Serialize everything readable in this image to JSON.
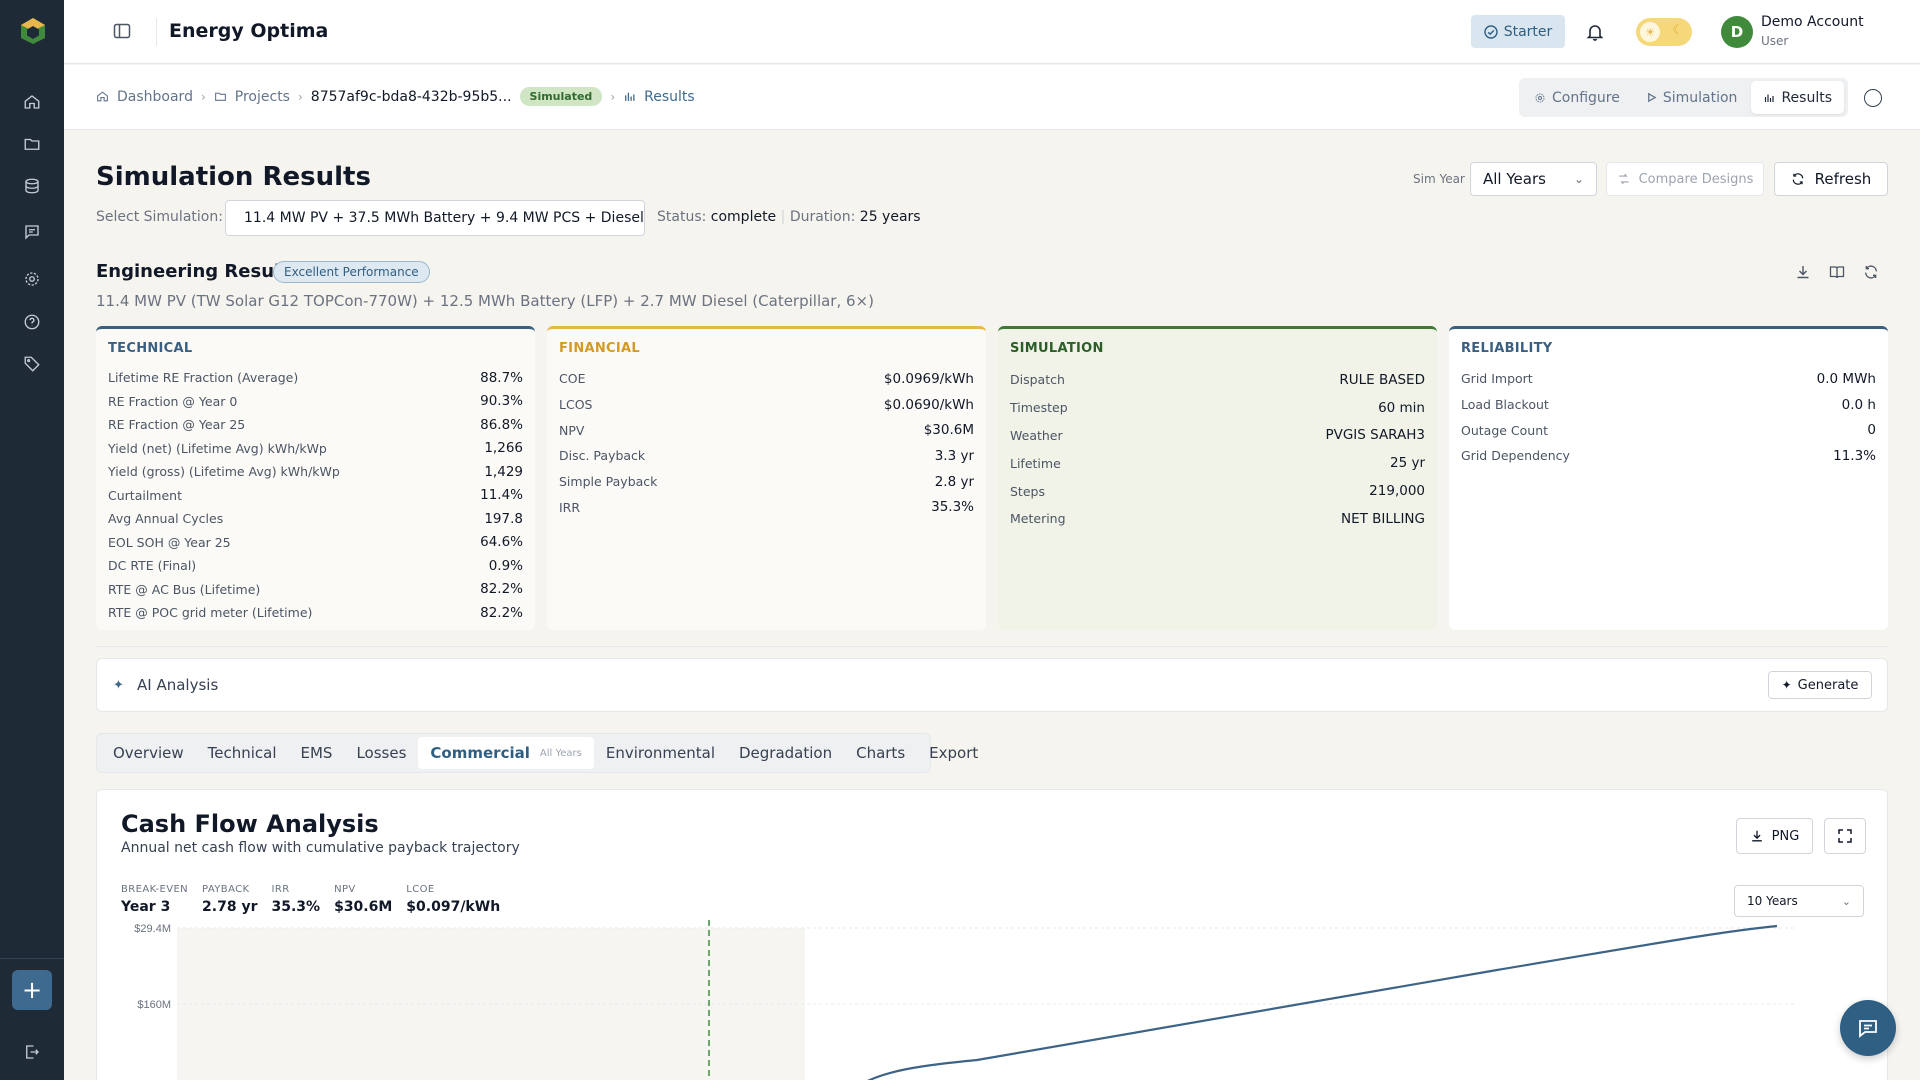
{
  "app": {
    "title": "Energy Optima"
  },
  "topbar": {
    "plan": "Starter",
    "account_name": "Demo Account",
    "account_role": "User",
    "avatar_letter": "D"
  },
  "sidebar": {
    "items": [
      "home-icon",
      "folder-icon",
      "database-icon",
      "message-icon",
      "settings-icon",
      "help-icon",
      "tag-icon"
    ],
    "add_label": "+"
  },
  "breadcrumb": {
    "dashboard": "Dashboard",
    "projects": "Projects",
    "project_id": "8757af9c-bda8-432b-95b5...",
    "status_badge": "Simulated",
    "results": "Results"
  },
  "view_tabs": {
    "configure": "Configure",
    "simulation": "Simulation",
    "results": "Results"
  },
  "header": {
    "title": "Simulation Results",
    "select_label": "Select Simulation:",
    "simulation": "11.4 MW PV + 37.5 MWh Battery + 9.4 MW PCS + Diesel...",
    "status_label": "Status:",
    "status_value": "complete",
    "duration_label": "Duration:",
    "duration_value": "25 years",
    "sim_year_label": "Sim Year",
    "sim_year_value": "All Years",
    "compare_label": "Compare Designs",
    "refresh_label": "Refresh"
  },
  "engineering": {
    "title": "Engineering Results",
    "badge": "Excellent Performance",
    "subtitle": "11.4 MW PV (TW Solar G12 TOPCon-770W) + 12.5 MWh Battery (LFP) + 2.7 MW Diesel (Caterpillar, 6×)"
  },
  "cards": {
    "technical": {
      "title": "TECHNICAL",
      "rows": [
        {
          "label": "Lifetime RE Fraction (Average)",
          "value": "88.7%"
        },
        {
          "label": "RE Fraction @ Year 0",
          "value": "90.3%"
        },
        {
          "label": "RE Fraction @ Year 25",
          "value": "86.8%"
        },
        {
          "label": "Yield (net) (Lifetime Avg) kWh/kWp",
          "value": "1,266"
        },
        {
          "label": "Yield (gross) (Lifetime Avg) kWh/kWp",
          "value": "1,429"
        },
        {
          "label": "Curtailment",
          "value": "11.4%"
        },
        {
          "label": "Avg Annual Cycles",
          "value": "197.8"
        },
        {
          "label": "EOL SOH @ Year 25",
          "value": "64.6%"
        },
        {
          "label": "DC RTE (Final)",
          "value": "0.9%"
        },
        {
          "label": "RTE @ AC Bus (Lifetime)",
          "value": "82.2%"
        },
        {
          "label": "RTE @ POC grid meter (Lifetime)",
          "value": "82.2%"
        }
      ]
    },
    "financial": {
      "title": "FINANCIAL",
      "rows": [
        {
          "label": "COE",
          "value": "$0.0969/kWh"
        },
        {
          "label": "LCOS",
          "value": "$0.0690/kWh"
        },
        {
          "label": "NPV",
          "value": "$30.6M"
        },
        {
          "label": "Disc. Payback",
          "value": "3.3 yr"
        },
        {
          "label": "Simple Payback",
          "value": "2.8 yr"
        },
        {
          "label": "IRR",
          "value": "35.3%"
        }
      ]
    },
    "simulation": {
      "title": "SIMULATION",
      "rows": [
        {
          "label": "Dispatch",
          "value": "RULE BASED"
        },
        {
          "label": "Timestep",
          "value": "60 min"
        },
        {
          "label": "Weather",
          "value": "PVGIS SARAH3"
        },
        {
          "label": "Lifetime",
          "value": "25 yr"
        },
        {
          "label": "Steps",
          "value": "219,000"
        },
        {
          "label": "Metering",
          "value": "NET BILLING"
        }
      ]
    },
    "reliability": {
      "title": "RELIABILITY",
      "rows": [
        {
          "label": "Grid Import",
          "value": "0.0 MWh"
        },
        {
          "label": "Load Blackout",
          "value": "0.0 h"
        },
        {
          "label": "Outage Count",
          "value": "0"
        },
        {
          "label": "Grid Dependency",
          "value": "11.3%"
        }
      ]
    }
  },
  "ai": {
    "label": "AI Analysis",
    "generate": "Generate"
  },
  "tabs": [
    {
      "label": "Overview"
    },
    {
      "label": "Technical"
    },
    {
      "label": "EMS"
    },
    {
      "label": "Losses"
    },
    {
      "label": "Commercial",
      "note": "All Years",
      "active": true
    },
    {
      "label": "Environmental"
    },
    {
      "label": "Degradation"
    },
    {
      "label": "Charts"
    },
    {
      "label": "Export"
    }
  ],
  "chart_panel": {
    "title": "Cash Flow Analysis",
    "subtitle": "Annual net cash flow with cumulative payback trajectory",
    "png_label": "PNG",
    "range": "10 Years",
    "kpis": [
      {
        "label": "BREAK-EVEN",
        "value": "Year 3"
      },
      {
        "label": "PAYBACK",
        "value": "2.78 yr"
      },
      {
        "label": "IRR",
        "value": "35.3%"
      },
      {
        "label": "NPV",
        "value": "$30.6M"
      },
      {
        "label": "LCOE",
        "value": "$0.097/kWh"
      }
    ]
  },
  "chart_data": {
    "type": "line",
    "title": "Cash Flow Analysis",
    "y_tick_labels": [
      "$29.4M",
      "$160M"
    ],
    "break_even_year": 3,
    "series": [
      {
        "values_shape": "rising cumulative cash flow",
        "color": "#3d6487"
      }
    ]
  },
  "colors": {
    "sidebar": "#1f2a37",
    "accent": "#3d6a8e",
    "technical": "#3b5f80",
    "financial": "#e8b64b",
    "simulation": "#3f7a35"
  }
}
